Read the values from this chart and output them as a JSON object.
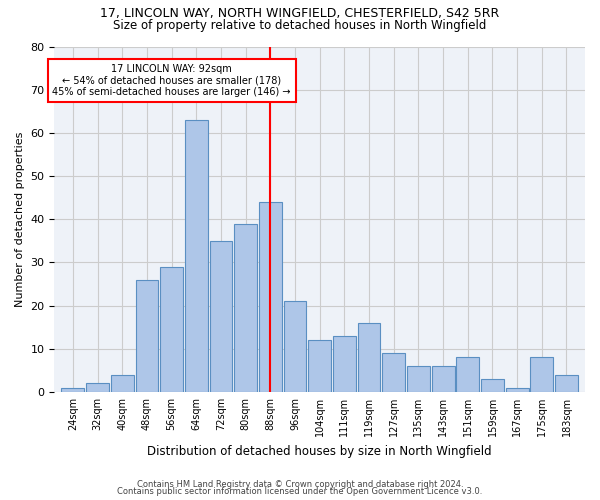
{
  "title1": "17, LINCOLN WAY, NORTH WINGFIELD, CHESTERFIELD, S42 5RR",
  "title2": "Size of property relative to detached houses in North Wingfield",
  "xlabel": "Distribution of detached houses by size in North Wingfield",
  "ylabel": "Number of detached properties",
  "footer1": "Contains HM Land Registry data © Crown copyright and database right 2024.",
  "footer2": "Contains public sector information licensed under the Open Government Licence v3.0.",
  "bin_labels": [
    "24sqm",
    "32sqm",
    "40sqm",
    "48sqm",
    "56sqm",
    "64sqm",
    "72sqm",
    "80sqm",
    "88sqm",
    "96sqm",
    "104sqm",
    "111sqm",
    "119sqm",
    "127sqm",
    "135sqm",
    "143sqm",
    "151sqm",
    "159sqm",
    "167sqm",
    "175sqm",
    "183sqm"
  ],
  "bar_values": [
    1,
    2,
    4,
    26,
    29,
    63,
    35,
    39,
    44,
    21,
    12,
    13,
    16,
    9,
    6,
    6,
    8,
    3,
    1,
    8,
    4
  ],
  "bar_color": "#aec6e8",
  "bar_edgecolor": "#5a8fc2",
  "vline_x": 92,
  "vline_color": "red",
  "annotation_text": "17 LINCOLN WAY: 92sqm\n← 54% of detached houses are smaller (178)\n45% of semi-detached houses are larger (146) →",
  "annotation_box_color": "white",
  "annotation_box_edgecolor": "red",
  "ylim": [
    0,
    80
  ],
  "yticks": [
    0,
    10,
    20,
    30,
    40,
    50,
    60,
    70,
    80
  ],
  "grid_color": "#cccccc",
  "bg_color": "#eef2f8",
  "title1_fontsize": 9,
  "title2_fontsize": 8.5,
  "bin_width": 8
}
